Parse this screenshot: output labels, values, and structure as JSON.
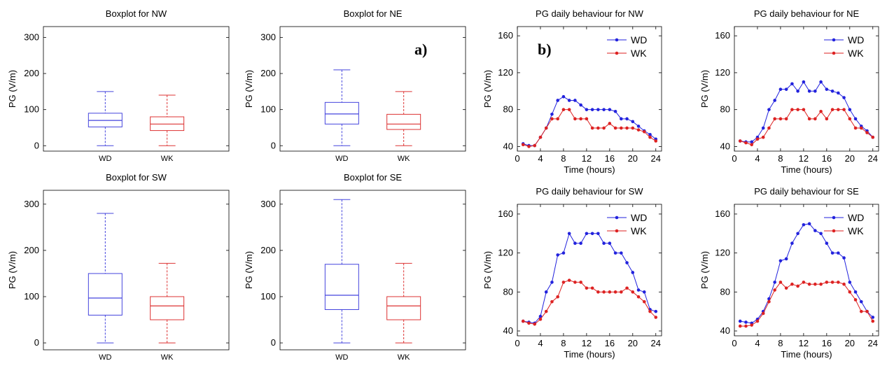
{
  "panel_labels": {
    "a": "a)",
    "b": "b)"
  },
  "chart_data": [
    {
      "type": "box",
      "title": "Boxplot for NW",
      "ylabel": "PG (V/m)",
      "categories": [
        "WD",
        "WK"
      ],
      "ylim": [
        -15,
        330
      ],
      "yticks": [
        0,
        100,
        200,
        300
      ],
      "colors": [
        "#4444dd",
        "#dd3333"
      ],
      "boxes": [
        {
          "name": "WD",
          "min": 0,
          "q1": 52,
          "median": 70,
          "q3": 90,
          "max": 150
        },
        {
          "name": "WK",
          "min": 0,
          "q1": 42,
          "median": 60,
          "q3": 80,
          "max": 140
        }
      ]
    },
    {
      "type": "box",
      "title": "Boxplot for NE",
      "ylabel": "PG (V/m)",
      "categories": [
        "WD",
        "WK"
      ],
      "ylim": [
        -15,
        330
      ],
      "yticks": [
        0,
        100,
        200,
        300
      ],
      "colors": [
        "#4444dd",
        "#dd3333"
      ],
      "boxes": [
        {
          "name": "WD",
          "min": 0,
          "q1": 60,
          "median": 88,
          "q3": 120,
          "max": 210
        },
        {
          "name": "WK",
          "min": 0,
          "q1": 45,
          "median": 60,
          "q3": 87,
          "max": 150
        }
      ]
    },
    {
      "type": "box",
      "title": "Boxplot for SW",
      "ylabel": "PG (V/m)",
      "categories": [
        "WD",
        "WK"
      ],
      "ylim": [
        -15,
        330
      ],
      "yticks": [
        0,
        100,
        200,
        300
      ],
      "colors": [
        "#4444dd",
        "#dd3333"
      ],
      "boxes": [
        {
          "name": "WD",
          "min": 0,
          "q1": 60,
          "median": 97,
          "q3": 150,
          "max": 280
        },
        {
          "name": "WK",
          "min": 0,
          "q1": 50,
          "median": 80,
          "q3": 100,
          "max": 172
        }
      ]
    },
    {
      "type": "box",
      "title": "Boxplot for SE",
      "ylabel": "PG (V/m)",
      "categories": [
        "WD",
        "WK"
      ],
      "ylim": [
        -15,
        330
      ],
      "yticks": [
        0,
        100,
        200,
        300
      ],
      "colors": [
        "#4444dd",
        "#dd3333"
      ],
      "boxes": [
        {
          "name": "WD",
          "min": 0,
          "q1": 72,
          "median": 103,
          "q3": 170,
          "max": 310
        },
        {
          "name": "WK",
          "min": 0,
          "q1": 50,
          "median": 80,
          "q3": 100,
          "max": 172
        }
      ]
    },
    {
      "type": "line",
      "title": "PG daily behaviour for NW",
      "xlabel": "Time (hours)",
      "ylabel": "PG (V/m)",
      "xlim": [
        0,
        25
      ],
      "ylim": [
        35,
        170
      ],
      "xticks": [
        0,
        4,
        8,
        12,
        16,
        20,
        24
      ],
      "yticks": [
        40,
        80,
        120,
        160
      ],
      "legend": "top-right",
      "x": [
        1,
        2,
        3,
        4,
        5,
        6,
        7,
        8,
        9,
        10,
        11,
        12,
        13,
        14,
        15,
        16,
        17,
        18,
        19,
        20,
        21,
        22,
        23,
        24
      ],
      "series": [
        {
          "name": "WD",
          "color": "#2222dd",
          "values": [
            43,
            41,
            41,
            50,
            60,
            75,
            90,
            94,
            90,
            90,
            85,
            80,
            80,
            80,
            80,
            80,
            78,
            70,
            70,
            67,
            62,
            57,
            53,
            48
          ]
        },
        {
          "name": "WK",
          "color": "#dd2222",
          "values": [
            42,
            40,
            41,
            50,
            60,
            70,
            70,
            80,
            80,
            70,
            70,
            70,
            60,
            60,
            60,
            65,
            60,
            60,
            60,
            60,
            58,
            56,
            50,
            46
          ]
        }
      ]
    },
    {
      "type": "line",
      "title": "PG daily behaviour for NE",
      "xlabel": "Time (hours)",
      "ylabel": "PG (V/m)",
      "xlim": [
        0,
        25
      ],
      "ylim": [
        35,
        170
      ],
      "xticks": [
        0,
        4,
        8,
        12,
        16,
        20,
        24
      ],
      "yticks": [
        40,
        80,
        120,
        160
      ],
      "legend": "top-right",
      "x": [
        1,
        2,
        3,
        4,
        5,
        6,
        7,
        8,
        9,
        10,
        11,
        12,
        13,
        14,
        15,
        16,
        17,
        18,
        19,
        20,
        21,
        22,
        23,
        24
      ],
      "series": [
        {
          "name": "WD",
          "color": "#2222dd",
          "values": [
            46,
            45,
            45,
            50,
            60,
            80,
            90,
            102,
            102,
            108,
            100,
            110,
            100,
            100,
            110,
            102,
            100,
            98,
            93,
            80,
            70,
            62,
            57,
            50
          ]
        },
        {
          "name": "WK",
          "color": "#dd2222",
          "values": [
            46,
            44,
            42,
            48,
            50,
            60,
            70,
            70,
            70,
            80,
            80,
            80,
            70,
            70,
            78,
            70,
            80,
            80,
            80,
            70,
            60,
            60,
            55,
            50
          ]
        }
      ]
    },
    {
      "type": "line",
      "title": "PG daily behaviour for SW",
      "xlabel": "Time (hours)",
      "ylabel": "PG (V/m)",
      "xlim": [
        0,
        25
      ],
      "ylim": [
        35,
        170
      ],
      "xticks": [
        0,
        4,
        8,
        12,
        16,
        20,
        24
      ],
      "yticks": [
        40,
        80,
        120,
        160
      ],
      "legend": "top-right",
      "x": [
        1,
        2,
        3,
        4,
        5,
        6,
        7,
        8,
        9,
        10,
        11,
        12,
        13,
        14,
        15,
        16,
        17,
        18,
        19,
        20,
        21,
        22,
        23,
        24
      ],
      "series": [
        {
          "name": "WD",
          "color": "#2222dd",
          "values": [
            50,
            49,
            48,
            55,
            80,
            90,
            118,
            120,
            140,
            130,
            130,
            140,
            140,
            140,
            130,
            130,
            120,
            120,
            110,
            100,
            82,
            80,
            62,
            60
          ]
        },
        {
          "name": "WK",
          "color": "#dd2222",
          "values": [
            50,
            48,
            47,
            52,
            60,
            70,
            75,
            90,
            92,
            90,
            90,
            84,
            84,
            80,
            80,
            80,
            80,
            80,
            84,
            80,
            75,
            70,
            60,
            54
          ]
        }
      ]
    },
    {
      "type": "line",
      "title": "PG daily behaviour for SE",
      "xlabel": "Time (hours)",
      "ylabel": "PG (V/m)",
      "xlim": [
        0,
        25
      ],
      "ylim": [
        35,
        170
      ],
      "xticks": [
        0,
        4,
        8,
        12,
        16,
        20,
        24
      ],
      "yticks": [
        40,
        80,
        120,
        160
      ],
      "legend": "top-right",
      "x": [
        1,
        2,
        3,
        4,
        5,
        6,
        7,
        8,
        9,
        10,
        11,
        12,
        13,
        14,
        15,
        16,
        17,
        18,
        19,
        20,
        21,
        22,
        23,
        24
      ],
      "series": [
        {
          "name": "WD",
          "color": "#2222dd",
          "values": [
            50,
            49,
            48,
            52,
            60,
            73,
            90,
            112,
            114,
            130,
            140,
            149,
            150,
            143,
            140,
            130,
            120,
            120,
            115,
            90,
            80,
            70,
            60,
            54
          ]
        },
        {
          "name": "WK",
          "color": "#dd2222",
          "values": [
            45,
            45,
            46,
            50,
            58,
            70,
            82,
            90,
            84,
            88,
            86,
            90,
            88,
            88,
            88,
            90,
            90,
            90,
            88,
            80,
            72,
            60,
            60,
            50
          ]
        }
      ]
    }
  ]
}
